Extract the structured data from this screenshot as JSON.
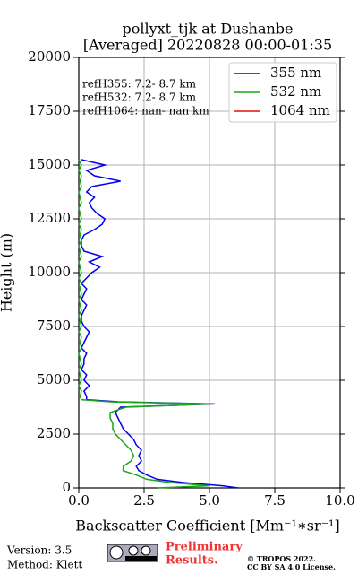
{
  "chart_data": {
    "type": "line",
    "title": "pollyxt_tjk at Dushanbe",
    "subtitle": "[Averaged] 20220828 00:00-01:35",
    "x_label": "Backscatter Coefficient [Mm⁻¹∗sr⁻¹]",
    "y_label": "Height (m)",
    "annotations": [
      "refH355:  7.2- 8.7 km",
      "refH532:  7.2- 8.7 km",
      "refH1064:  nan- nan km"
    ],
    "xlim": [
      0,
      10
    ],
    "xticks": [
      {
        "value": 0,
        "label": "0.0"
      },
      {
        "value": 2.5,
        "label": "2.5"
      },
      {
        "value": 5,
        "label": "5.0"
      },
      {
        "value": 7.5,
        "label": "7.5"
      },
      {
        "value": 10,
        "label": "10.0"
      }
    ],
    "ylim": [
      0,
      20000
    ],
    "yticks": [
      0,
      2500,
      5000,
      7500,
      10000,
      12500,
      15000,
      17500,
      20000
    ],
    "grid": true,
    "legend": "upper right",
    "y": [
      0,
      100,
      250,
      400,
      600,
      800,
      1000,
      1250,
      1500,
      1750,
      2000,
      2250,
      2500,
      2750,
      3000,
      3250,
      3500,
      3750,
      3900,
      4000,
      4100,
      4250,
      4500,
      4750,
      5000,
      5250,
      5500,
      5750,
      6000,
      6250,
      6500,
      6750,
      7000,
      7250,
      7500,
      7750,
      8000,
      8250,
      8500,
      8750,
      9000,
      9250,
      9500,
      9750,
      10000,
      10250,
      10500,
      10750,
      11000,
      11250,
      11500,
      11750,
      12000,
      12250,
      12500,
      12750,
      13000,
      13250,
      13500,
      13750,
      14000,
      14250,
      14500,
      14750,
      15000,
      15250
    ],
    "series": [
      {
        "name": "355 nm",
        "color": "#0000ee",
        "values": [
          6.1,
          5.5,
          4.0,
          3.0,
          2.6,
          2.3,
          2.2,
          2.4,
          2.3,
          2.4,
          2.2,
          2.1,
          1.9,
          1.7,
          1.6,
          1.5,
          1.4,
          1.6,
          5.2,
          1.5,
          0.3,
          0.3,
          0.2,
          0.4,
          0.2,
          0.3,
          0.1,
          0.2,
          0.2,
          0.3,
          0.1,
          0.2,
          0.3,
          0.4,
          0.2,
          0.1,
          0.1,
          0.2,
          0.3,
          0.1,
          0.2,
          0.3,
          0.1,
          0.3,
          0.5,
          0.8,
          0.4,
          0.9,
          0.2,
          0.1,
          0.1,
          0.2,
          0.6,
          0.9,
          1.0,
          0.7,
          0.5,
          0.4,
          0.6,
          0.3,
          0.5,
          1.6,
          0.6,
          0.3,
          1.0,
          0.1
        ]
      },
      {
        "name": "532 nm",
        "color": "#1aa51a",
        "values": [
          3.0,
          5.0,
          3.5,
          2.6,
          2.2,
          1.7,
          1.7,
          2.0,
          2.1,
          2.0,
          1.8,
          1.6,
          1.4,
          1.3,
          1.3,
          1.2,
          1.2,
          1.8,
          5.1,
          1.2,
          0.1,
          0.05,
          0.1,
          0.0,
          0.1,
          0.05,
          0.0,
          0.1,
          0.05,
          0.0,
          0.1,
          0.05,
          0.1,
          0.0,
          0.1,
          0.05,
          0.0,
          0.1,
          0.05,
          0.0,
          0.1,
          0.05,
          0.1,
          0.0,
          0.1,
          0.05,
          0.0,
          0.1,
          0.05,
          0.0,
          0.1,
          0.05,
          0.1,
          0.0,
          0.1,
          0.05,
          0.0,
          0.1,
          0.05,
          0.0,
          0.1,
          0.05,
          0.1,
          0.0,
          0.1,
          0.0
        ]
      },
      {
        "name": "1064 nm",
        "color": "#dd1111",
        "values": [
          null,
          null,
          null,
          null,
          null,
          null,
          null,
          null,
          null,
          null,
          null,
          null,
          null,
          null,
          null,
          null,
          null,
          null,
          null,
          null,
          null,
          null,
          null,
          null,
          null,
          null,
          null,
          null,
          null,
          null,
          null,
          null,
          null,
          null,
          null,
          null,
          null,
          null,
          null,
          null,
          null,
          null,
          null,
          null,
          null,
          null,
          null,
          null,
          null,
          null,
          null,
          null,
          null,
          null,
          null,
          null,
          null,
          null,
          null,
          null,
          null,
          null,
          null,
          null,
          null,
          null
        ]
      }
    ]
  },
  "footer": {
    "version": "Version: 3.5",
    "method": "Method: Klett",
    "preliminary": [
      "Preliminary",
      "Results."
    ],
    "license": [
      "© TROPOS 2022.",
      "CC BY SA 4.0 License."
    ]
  }
}
